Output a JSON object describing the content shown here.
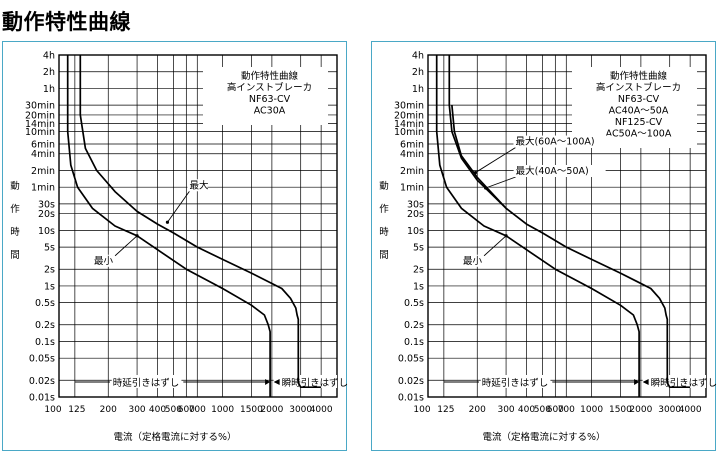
{
  "page": {
    "title": "動作特性曲線"
  },
  "ylabel_chars": [
    "動",
    "作",
    "時",
    "間"
  ],
  "xlabel": "電流（定格電流に対する%）",
  "y_ticks": [
    {
      "label": "4h",
      "v": 14400
    },
    {
      "label": "2h",
      "v": 7200
    },
    {
      "label": "1h",
      "v": 3600
    },
    {
      "label": "30min",
      "v": 1800
    },
    {
      "label": "20min",
      "v": 1200
    },
    {
      "label": "14min",
      "v": 840
    },
    {
      "label": "10min",
      "v": 600
    },
    {
      "label": "6min",
      "v": 360
    },
    {
      "label": "4min",
      "v": 240
    },
    {
      "label": "2min",
      "v": 120
    },
    {
      "label": "1min",
      "v": 60
    },
    {
      "label": "30s",
      "v": 30
    },
    {
      "label": "20s",
      "v": 20
    },
    {
      "label": "10s",
      "v": 10
    },
    {
      "label": "5s",
      "v": 5
    },
    {
      "label": "2s",
      "v": 2
    },
    {
      "label": "1s",
      "v": 1
    },
    {
      "label": "0.5s",
      "v": 0.5
    },
    {
      "label": "0.2s",
      "v": 0.2
    },
    {
      "label": "0.1s",
      "v": 0.1
    },
    {
      "label": "0.05s",
      "v": 0.05
    },
    {
      "label": "0.02s",
      "v": 0.02
    },
    {
      "label": "0.01s",
      "v": 0.01
    }
  ],
  "x_ticks": [
    {
      "label": "100",
      "v": 100
    },
    {
      "label": "125",
      "v": 125
    },
    {
      "label": "200",
      "v": 200
    },
    {
      "label": "300",
      "v": 300
    },
    {
      "label": "400",
      "v": 400
    },
    {
      "label": "500",
      "v": 500
    },
    {
      "label": "600",
      "v": 600
    },
    {
      "label": "700",
      "v": 700
    },
    {
      "label": "1000",
      "v": 1000
    },
    {
      "label": "1500",
      "v": 1500
    },
    {
      "label": "2000",
      "v": 2000
    },
    {
      "label": "3000",
      "v": 3000
    },
    {
      "label": "4000",
      "v": 4000
    }
  ],
  "x_grid": [
    125,
    200,
    300,
    400,
    500,
    600,
    700,
    1000,
    1500,
    2000,
    3000,
    4000
  ],
  "bottom_labels": {
    "time_delay": "時延引きはずし",
    "instant": "瞬時引きはずし"
  },
  "chart_data": [
    {
      "type": "line",
      "xscale": "log",
      "yscale": "log",
      "xlim": [
        100,
        5000
      ],
      "ylim": [
        0.01,
        14400
      ],
      "xlabel": "電流（定格電流に対する%）",
      "ylabel": "動作時間",
      "grid": true,
      "info_box": [
        "動作特性曲線",
        "高インストブレーカ",
        "NF63-CV",
        "AC30A"
      ],
      "series": [
        {
          "name": "最大",
          "x": [
            135,
            135,
            145,
            170,
            220,
            300,
            400,
            500,
            700,
            1000,
            1500,
            2300,
            2600,
            2800,
            2850,
            2900,
            2900,
            3000,
            4000
          ],
          "y": [
            14400,
            1200,
            300,
            120,
            50,
            22,
            13,
            9,
            5,
            3,
            1.7,
            0.9,
            0.6,
            0.4,
            0.3,
            0.25,
            0.018,
            0.015,
            0.015
          ]
        },
        {
          "name": "最小",
          "x": [
            113,
            113,
            118,
            130,
            160,
            220,
            300,
            400,
            600,
            1000,
            1500,
            1800,
            1900,
            1950,
            1950
          ],
          "y": [
            14400,
            600,
            150,
            60,
            25,
            12,
            8,
            4.5,
            2,
            0.9,
            0.45,
            0.3,
            0.2,
            0.15,
            0.01
          ]
        }
      ],
      "annotations": [
        {
          "text": "最大",
          "x": 460,
          "y": 14,
          "label_dx": 22,
          "label_dy": -34
        },
        {
          "text": "最小",
          "x": 300,
          "y": 8,
          "label_dx": -22,
          "label_dy": 28
        }
      ]
    },
    {
      "type": "line",
      "xscale": "log",
      "yscale": "log",
      "xlim": [
        100,
        5000
      ],
      "ylim": [
        0.01,
        14400
      ],
      "xlabel": "電流（定格電流に対する%）",
      "ylabel": "動作時間",
      "grid": true,
      "info_box": [
        "動作特性曲線",
        "高インストブレーカ",
        "NF63-CV",
        "AC40A～50A",
        "NF125-CV",
        "AC50A～100A"
      ],
      "series": [
        {
          "name": "最大(60A～100A)",
          "x": [
            135,
            135,
            140,
            160,
            200,
            300,
            400,
            500,
            700,
            1000,
            1500,
            2300,
            2600,
            2800,
            2850,
            2900,
            2900,
            3000,
            4000
          ],
          "y": [
            14400,
            1800,
            600,
            200,
            80,
            25,
            13,
            9,
            5,
            3,
            1.7,
            0.9,
            0.6,
            0.4,
            0.3,
            0.25,
            0.018,
            0.015,
            0.015
          ]
        },
        {
          "name": "最大(40A～50A)",
          "x": [
            140,
            145,
            160,
            200,
            300
          ],
          "y": [
            1800,
            600,
            220,
            90,
            25
          ]
        },
        {
          "name": "最小",
          "x": [
            113,
            113,
            118,
            130,
            160,
            220,
            300,
            400,
            600,
            1000,
            1500,
            1800,
            1900,
            1950,
            1950
          ],
          "y": [
            14400,
            600,
            150,
            60,
            25,
            12,
            8,
            4.5,
            2,
            0.9,
            0.45,
            0.3,
            0.2,
            0.15,
            0.01
          ]
        }
      ],
      "annotations": [
        {
          "text": "最大(60A～100A)",
          "x": 195,
          "y": 110,
          "label_dx": 40,
          "label_dy": -28
        },
        {
          "text": "最大(40A～50A)",
          "x": 225,
          "y": 58,
          "label_dx": 30,
          "label_dy": -14
        },
        {
          "text": "最小",
          "x": 300,
          "y": 8,
          "label_dx": -22,
          "label_dy": 28
        }
      ]
    }
  ]
}
